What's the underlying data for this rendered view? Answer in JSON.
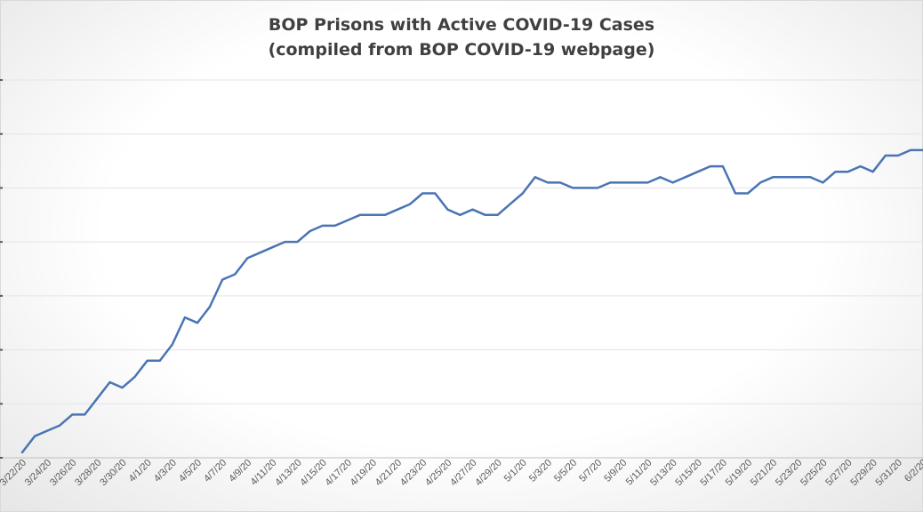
{
  "chart_data": {
    "type": "line",
    "title": "BOP Prisons with Active COVID-19 Cases",
    "subtitle": "(compiled from BOP COVID-19 webpage)",
    "xlabel": "",
    "ylabel": "",
    "grid": true,
    "legend": "none",
    "ylim": [
      0,
      70
    ],
    "y_tick_step": 10,
    "y_tick_labels_visible": false,
    "line_color": "#4a74b4",
    "x": [
      "3/22/20",
      "3/23/20",
      "3/24/20",
      "3/25/20",
      "3/26/20",
      "3/27/20",
      "3/28/20",
      "3/29/20",
      "3/30/20",
      "3/31/20",
      "4/1/20",
      "4/2/20",
      "4/3/20",
      "4/4/20",
      "4/5/20",
      "4/6/20",
      "4/7/20",
      "4/8/20",
      "4/9/20",
      "4/10/20",
      "4/11/20",
      "4/12/20",
      "4/13/20",
      "4/14/20",
      "4/15/20",
      "4/16/20",
      "4/17/20",
      "4/18/20",
      "4/19/20",
      "4/20/20",
      "4/21/20",
      "4/22/20",
      "4/23/20",
      "4/24/20",
      "4/25/20",
      "4/26/20",
      "4/27/20",
      "4/28/20",
      "4/29/20",
      "4/30/20",
      "5/1/20",
      "5/2/20",
      "5/3/20",
      "5/4/20",
      "5/5/20",
      "5/6/20",
      "5/7/20",
      "5/8/20",
      "5/9/20",
      "5/10/20",
      "5/11/20",
      "5/12/20",
      "5/13/20",
      "5/14/20",
      "5/15/20",
      "5/16/20",
      "5/17/20",
      "5/18/20",
      "5/19/20",
      "5/20/20",
      "5/21/20",
      "5/22/20",
      "5/23/20",
      "5/24/20",
      "5/25/20",
      "5/26/20",
      "5/27/20",
      "5/28/20",
      "5/29/20",
      "5/30/20",
      "5/31/20",
      "6/1/20",
      "6/2/20"
    ],
    "x_tick_labels": [
      "3/22/20",
      "3/24/20",
      "3/26/20",
      "3/28/20",
      "3/30/20",
      "4/1/20",
      "4/3/20",
      "4/5/20",
      "4/7/20",
      "4/9/20",
      "4/11/20",
      "4/13/20",
      "4/15/20",
      "4/17/20",
      "4/19/20",
      "4/21/20",
      "4/23/20",
      "4/25/20",
      "4/27/20",
      "4/29/20",
      "5/1/20",
      "5/3/20",
      "5/5/20",
      "5/7/20",
      "5/9/20",
      "5/11/20",
      "5/13/20",
      "5/15/20",
      "5/17/20",
      "5/19/20",
      "5/21/20",
      "5/23/20",
      "5/25/20",
      "5/27/20",
      "5/29/20",
      "5/31/20",
      "6/2/20"
    ],
    "values": [
      1,
      4,
      5,
      6,
      8,
      8,
      11,
      14,
      13,
      15,
      18,
      18,
      21,
      26,
      25,
      28,
      33,
      34,
      37,
      38,
      39,
      40,
      40,
      42,
      43,
      43,
      44,
      45,
      45,
      45,
      46,
      47,
      49,
      49,
      46,
      45,
      46,
      45,
      45,
      47,
      49,
      52,
      51,
      51,
      50,
      50,
      50,
      51,
      51,
      51,
      51,
      52,
      51,
      52,
      53,
      54,
      54,
      49,
      49,
      51,
      52,
      52,
      52,
      52,
      51,
      53,
      53,
      54,
      53,
      56,
      56,
      57,
      57
    ]
  }
}
